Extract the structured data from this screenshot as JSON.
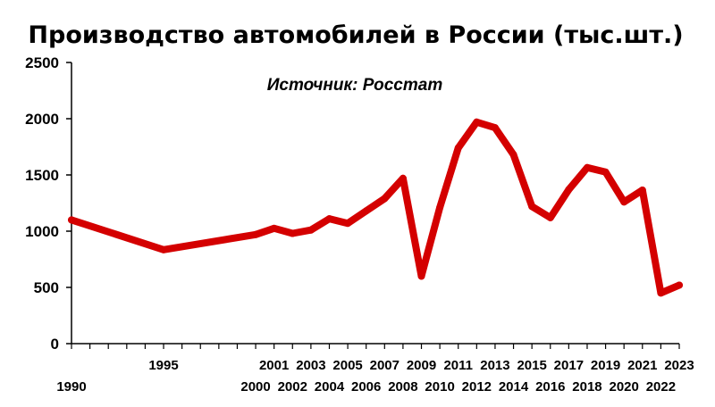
{
  "chart_data": {
    "type": "line",
    "title": "Производство автомобилей в России (тыс.шт.)",
    "annotation": "Источник: Росстат",
    "xlabel": "",
    "ylabel": "",
    "ylim": [
      0,
      2500
    ],
    "yticks": [
      "0",
      "500",
      "1000",
      "1500",
      "2000",
      "2500"
    ],
    "grid": false,
    "line_color": "#d40000",
    "x": [
      "1990",
      "1995",
      "2000",
      "2001",
      "2002",
      "2003",
      "2004",
      "2005",
      "2006",
      "2007",
      "2008",
      "2009",
      "2010",
      "2011",
      "2012",
      "2013",
      "2014",
      "2015",
      "2016",
      "2017",
      "2018",
      "2019",
      "2020",
      "2021",
      "2022",
      "2023"
    ],
    "values": [
      1100,
      835,
      970,
      1025,
      980,
      1010,
      1110,
      1070,
      1180,
      1290,
      1470,
      600,
      1210,
      1740,
      1970,
      1920,
      1680,
      1220,
      1120,
      1370,
      1565,
      1525,
      1260,
      1365,
      450,
      520
    ]
  }
}
